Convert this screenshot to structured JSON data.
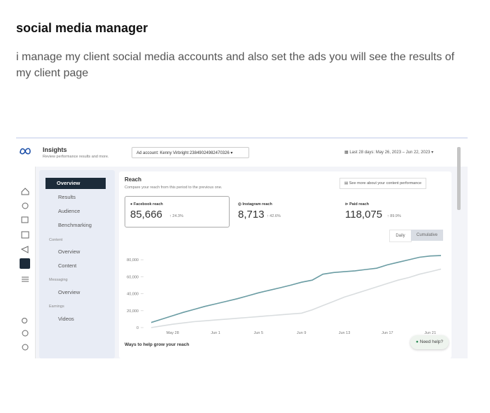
{
  "post": {
    "title": "social media manager",
    "description": "i manage my client social media accounts and also set the ads you will see the results of my client page"
  },
  "insights": {
    "app_title": "Insights",
    "app_subtitle": "Review performance results and more.",
    "ad_account": "Ad account: Kenny Virbright 23849024982470326",
    "date_range": "Last 28 days: May 26, 2023 – Jun 22, 2023",
    "nav": {
      "overview": "Overview",
      "results": "Results",
      "audience": "Audience",
      "benchmarking": "Benchmarking",
      "content_section": "Content",
      "content_overview": "Overview",
      "content": "Content",
      "messaging_section": "Messaging",
      "messaging_overview": "Overview",
      "earnings_section": "Earnings",
      "videos": "Videos"
    },
    "reach_title": "Reach",
    "reach_subtitle": "Compare your reach from this period to the previous one.",
    "see_more": "See more about your content performance",
    "metrics": [
      {
        "label": "Facebook reach",
        "value": "85,666",
        "change": "24.3%"
      },
      {
        "label": "Instagram reach",
        "value": "8,713",
        "change": "42.6%"
      },
      {
        "label": "Paid reach",
        "value": "118,075",
        "change": "89.9%"
      }
    ],
    "toggle": [
      "Daily",
      "Cumulative"
    ],
    "ways": "Ways to help grow your reach",
    "help": "Need help?"
  },
  "chart_data": {
    "type": "line",
    "categories": [
      null,
      null,
      "May 28",
      null,
      null,
      null,
      "Jun 1",
      null,
      null,
      null,
      "Jun 5",
      null,
      null,
      null,
      "Jun 9",
      null,
      null,
      null,
      "Jun 13",
      null,
      null,
      null,
      "Jun 17",
      null,
      null,
      null,
      "Jun 21",
      null
    ],
    "series": [
      {
        "color": "#6a9ca3",
        "values": [
          6000,
          10000,
          14000,
          18000,
          21500,
          25000,
          28000,
          31000,
          34000,
          37500,
          41000,
          44000,
          47000,
          50000,
          53500,
          56000,
          63000,
          65000,
          66000,
          67000,
          68500,
          70000,
          74000,
          77000,
          80000,
          83000,
          84500,
          85000
        ]
      },
      {
        "color": "#d9dddf",
        "values": [
          0,
          2000,
          4000,
          5500,
          7000,
          8000,
          9000,
          10000,
          11000,
          12000,
          13000,
          14000,
          15000,
          16000,
          17000,
          21000,
          26000,
          31000,
          36000,
          40000,
          44000,
          48000,
          52000,
          56000,
          59000,
          63000,
          66000,
          69000
        ]
      }
    ],
    "ylim": [
      0,
      90000
    ],
    "yticks": [
      0,
      {
        "value": 20000,
        "label": "20,000"
      },
      {
        "value": 40000,
        "label": "40,000"
      },
      {
        "value": 60000,
        "label": "60,000"
      },
      {
        "value": 80000,
        "label": "80,000"
      }
    ],
    "grid": false
  }
}
